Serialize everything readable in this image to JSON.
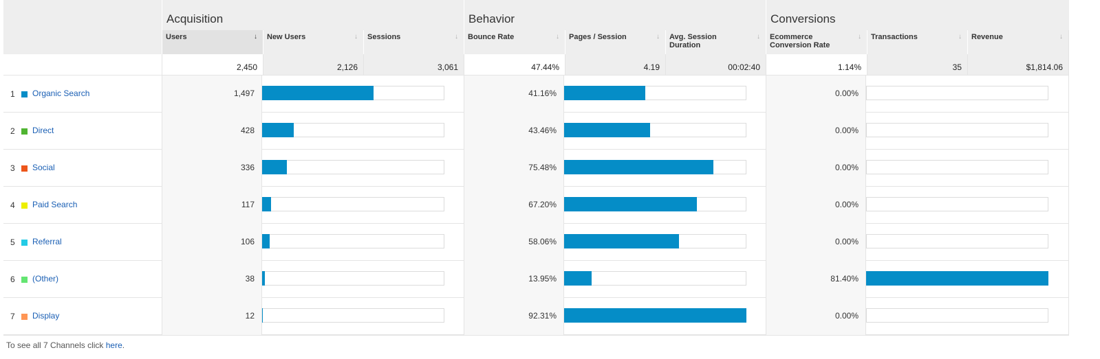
{
  "groups": {
    "acquisition": "Acquisition",
    "behavior": "Behavior",
    "conversions": "Conversions"
  },
  "columns": {
    "users": "Users",
    "new_users": "New Users",
    "sessions": "Sessions",
    "bounce_rate": "Bounce Rate",
    "pages_session": "Pages / Session",
    "avg_duration": "Avg. Session Duration",
    "ecom_rate": "Ecommerce Conversion Rate",
    "transactions": "Transactions",
    "revenue": "Revenue"
  },
  "sort_icons": {
    "active": "↓",
    "inactive": "↓"
  },
  "totals": {
    "users": "2,450",
    "new_users": "2,126",
    "sessions": "3,061",
    "bounce_rate": "47.44%",
    "pages_session": "4.19",
    "avg_duration": "00:02:40",
    "ecom_rate": "1.14%",
    "transactions": "35",
    "revenue": "$1,814.06"
  },
  "rows": [
    {
      "num": "1",
      "channel": "Organic Search",
      "color": "#058dc7",
      "users": "1,497",
      "users_share": 0.61,
      "bounce": "41.16%",
      "bounce_share": 0.446,
      "ecom": "0.00%",
      "ecom_share": 0.0
    },
    {
      "num": "2",
      "channel": "Direct",
      "color": "#50b432",
      "users": "428",
      "users_share": 0.175,
      "bounce": "43.46%",
      "bounce_share": 0.471,
      "ecom": "0.00%",
      "ecom_share": 0.0
    },
    {
      "num": "3",
      "channel": "Social",
      "color": "#ed561b",
      "users": "336",
      "users_share": 0.137,
      "bounce": "75.48%",
      "bounce_share": 0.818,
      "ecom": "0.00%",
      "ecom_share": 0.0
    },
    {
      "num": "4",
      "channel": "Paid Search",
      "color": "#edef00",
      "users": "117",
      "users_share": 0.048,
      "bounce": "67.20%",
      "bounce_share": 0.728,
      "ecom": "0.00%",
      "ecom_share": 0.0
    },
    {
      "num": "5",
      "channel": "Referral",
      "color": "#24cbe5",
      "users": "106",
      "users_share": 0.043,
      "bounce": "58.06%",
      "bounce_share": 0.629,
      "ecom": "0.00%",
      "ecom_share": 0.0
    },
    {
      "num": "6",
      "channel": "(Other)",
      "color": "#64e572",
      "users": "38",
      "users_share": 0.016,
      "bounce": "13.95%",
      "bounce_share": 0.151,
      "ecom": "81.40%",
      "ecom_share": 1.0
    },
    {
      "num": "7",
      "channel": "Display",
      "color": "#ff9655",
      "users": "12",
      "users_share": 0.005,
      "bounce": "92.31%",
      "bounce_share": 1.0,
      "ecom": "0.00%",
      "ecom_share": 0.0
    }
  ],
  "footer": {
    "text": "To see all 7 Channels click ",
    "link": "here",
    "end": "."
  }
}
